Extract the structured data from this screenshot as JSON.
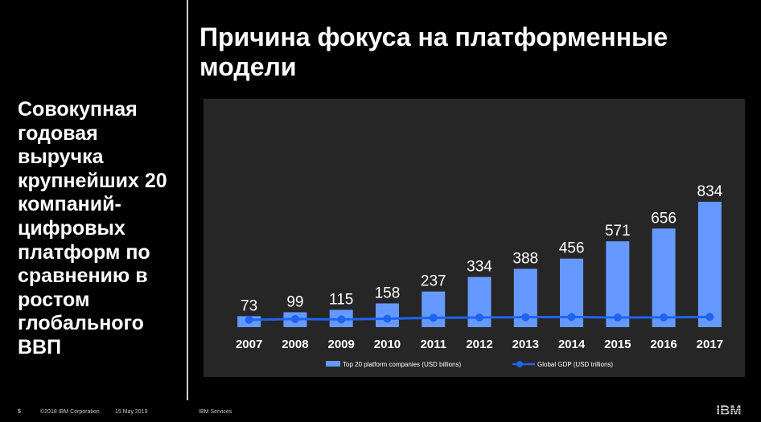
{
  "slide": {
    "side_text": "Совокупная годовая выручка крупнейших 20 компаний-цифровых платформ по сравнению в ростом глобального ВВП",
    "title": "Причина фокуса на платформенные модели"
  },
  "chart_data": {
    "type": "bar",
    "categories": [
      "2007",
      "2008",
      "2009",
      "2010",
      "2011",
      "2012",
      "2013",
      "2014",
      "2015",
      "2016",
      "2017"
    ],
    "series": [
      {
        "name": "Top 20 platform companies (USD billions)",
        "kind": "bar",
        "color": "#6699ff",
        "values": [
          73,
          99,
          115,
          158,
          237,
          334,
          388,
          456,
          571,
          656,
          834
        ]
      },
      {
        "name": "Global GDP (USD trillions)",
        "kind": "line",
        "color": "#1e64f0",
        "values": [
          57,
          63,
          60,
          66,
          73,
          75,
          77,
          79,
          75,
          76,
          80
        ]
      }
    ],
    "title": "",
    "xlabel": "",
    "ylabel": "",
    "ylim": [
      0,
      900
    ],
    "grid": false,
    "legend": "bottom-center"
  },
  "footer": {
    "page_number": "5",
    "copyright": "©2018 IBM Corporation",
    "date": "15 May 2019",
    "unit": "IBM Services",
    "logo_text": "IBM"
  },
  "colors": {
    "background": "#000000",
    "panel": "#262626",
    "bar": "#6699ff",
    "line": "#1e64f0"
  }
}
